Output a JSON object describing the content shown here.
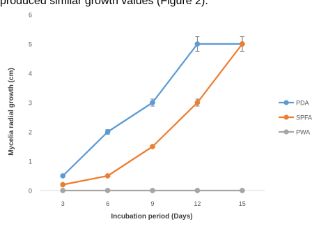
{
  "document_text": "produced similar growth values (Figure 2).",
  "chart_data": {
    "type": "line",
    "title": "",
    "xlabel": "Incubation period (Days)",
    "ylabel": "Mycelia radial growth (cm)",
    "x": [
      3,
      6,
      9,
      12,
      15
    ],
    "x_tick_labels": [
      "3",
      "6",
      "9",
      "12",
      "15"
    ],
    "y_tick_labels": [
      "0",
      "1",
      "2",
      "3",
      "4",
      "5",
      "6"
    ],
    "ylim": [
      0,
      6
    ],
    "grid": false,
    "legend_position": "right",
    "series": [
      {
        "name": "PDA",
        "values": [
          0.5,
          2.0,
          3.0,
          5.0,
          5.0
        ],
        "errors": [
          0,
          0.08,
          0.12,
          0.25,
          0.25
        ],
        "color": "#5B9BD5"
      },
      {
        "name": "SPFA",
        "values": [
          0.2,
          0.5,
          1.5,
          3.0,
          5.0
        ],
        "errors": [
          0,
          0,
          0,
          0.12,
          0.25
        ],
        "color": "#ED7D31"
      },
      {
        "name": "PWA",
        "values": [
          0,
          0,
          0,
          0,
          0
        ],
        "errors": [
          0,
          0,
          0,
          0,
          0
        ],
        "color": "#A5A5A5"
      }
    ]
  }
}
